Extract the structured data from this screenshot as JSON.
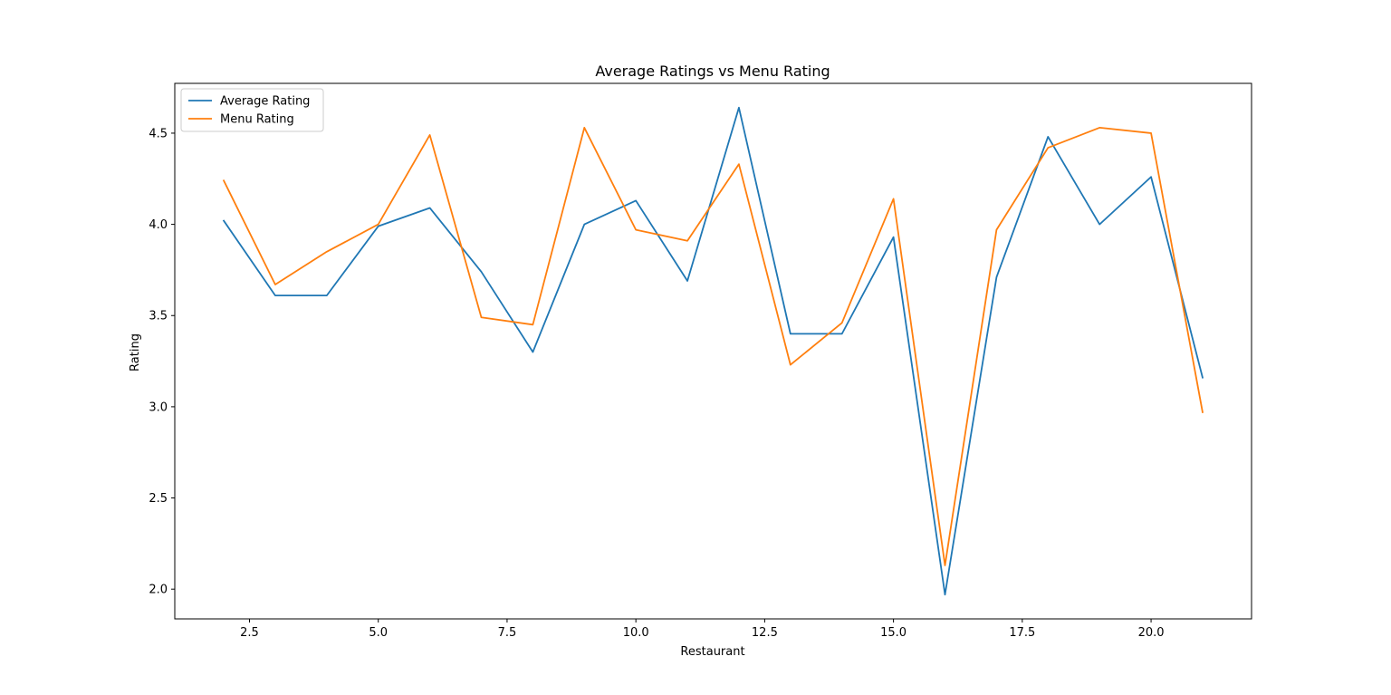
{
  "chart_data": {
    "type": "line",
    "title": "Average Ratings vs Menu Rating",
    "xlabel": "Restaurant",
    "ylabel": "Rating",
    "xlim": [
      1.05,
      21.95
    ],
    "ylim": [
      1.837,
      4.773
    ],
    "xticks": [
      2.5,
      5.0,
      7.5,
      10.0,
      12.5,
      15.0,
      17.5,
      20.0
    ],
    "xtick_labels": [
      "2.5",
      "5.0",
      "7.5",
      "10.0",
      "12.5",
      "15.0",
      "17.5",
      "20.0"
    ],
    "yticks": [
      2.0,
      2.5,
      3.0,
      3.5,
      4.0,
      4.5
    ],
    "ytick_labels": [
      "2.0",
      "2.5",
      "3.0",
      "3.5",
      "4.0",
      "4.5"
    ],
    "grid": false,
    "legend_position": "top-left",
    "x": [
      2,
      3,
      4,
      5,
      6,
      7,
      8,
      9,
      10,
      11,
      12,
      13,
      14,
      15,
      16,
      17,
      18,
      19,
      20,
      21
    ],
    "series": [
      {
        "name": "Average Rating",
        "color": "#1f77b4",
        "values": [
          4.02,
          3.61,
          3.61,
          3.99,
          4.09,
          3.74,
          3.3,
          4.0,
          4.13,
          3.69,
          4.64,
          3.4,
          3.4,
          3.93,
          1.97,
          3.71,
          4.48,
          4.0,
          4.26,
          3.16
        ]
      },
      {
        "name": "Menu Rating",
        "color": "#ff7f0e",
        "values": [
          4.24,
          3.67,
          3.85,
          4.0,
          4.49,
          3.49,
          3.45,
          4.53,
          3.97,
          3.91,
          4.33,
          3.23,
          3.46,
          4.14,
          2.13,
          3.97,
          4.42,
          4.53,
          4.5,
          2.97
        ]
      }
    ]
  }
}
